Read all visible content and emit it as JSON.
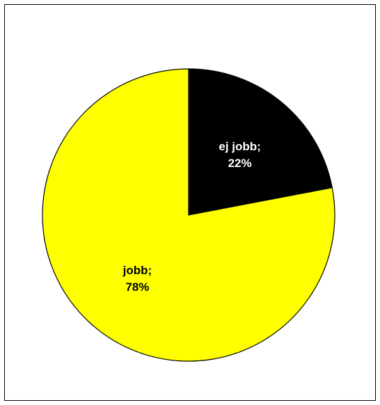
{
  "chart_data": {
    "type": "pie",
    "title": "",
    "slices": [
      {
        "label": "ej jobb",
        "value": 22,
        "display": "22%",
        "color": "#000000",
        "text_color": "#ffffff"
      },
      {
        "label": "jobb",
        "value": 78,
        "display": "78%",
        "color": "#ffff00",
        "text_color": "#000000"
      }
    ],
    "start_angle_deg": 0,
    "direction": "clockwise",
    "legend": "none",
    "label_format": "{label};\n{percent}"
  }
}
